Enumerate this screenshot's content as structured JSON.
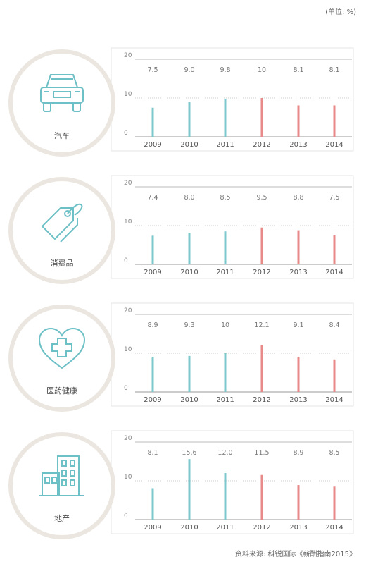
{
  "unit_note": "(单位: %)",
  "source_note": "资料来源: 科锐国际《薪酬指南2015》",
  "colors": {
    "early": "#7cc8cc",
    "late": "#e88a8a",
    "ring": "#ebe6df",
    "icon": "#6cc0c6"
  },
  "chart_data": [
    {
      "type": "bar",
      "label": "汽车",
      "icon": "car-icon",
      "categories": [
        "2009",
        "2010",
        "2011",
        "2012",
        "2013",
        "2014"
      ],
      "values": [
        7.5,
        9.0,
        9.8,
        10,
        8.1,
        8.1
      ],
      "value_labels": [
        "7.5",
        "9.0",
        "9.8",
        "10",
        "8.1",
        "8.1"
      ],
      "y_ticks": [
        "20",
        "10",
        "0"
      ],
      "ylim": [
        0,
        20
      ]
    },
    {
      "type": "bar",
      "label": "消费品",
      "icon": "price-tag-icon",
      "categories": [
        "2009",
        "2010",
        "2011",
        "2012",
        "2013",
        "2014"
      ],
      "values": [
        7.4,
        8.0,
        8.5,
        9.5,
        8.8,
        7.5
      ],
      "value_labels": [
        "7.4",
        "8.0",
        "8.5",
        "9.5",
        "8.8",
        "7.5"
      ],
      "y_ticks": [
        "20",
        "10",
        "0"
      ],
      "ylim": [
        0,
        20
      ]
    },
    {
      "type": "bar",
      "label": "医药健康",
      "icon": "heart-cross-icon",
      "categories": [
        "2009",
        "2010",
        "2011",
        "2012",
        "2013",
        "2014"
      ],
      "values": [
        8.9,
        9.3,
        10,
        12.1,
        9.1,
        8.4
      ],
      "value_labels": [
        "8.9",
        "9.3",
        "10",
        "12.1",
        "9.1",
        "8.4"
      ],
      "y_ticks": [
        "20",
        "10",
        "0"
      ],
      "ylim": [
        0,
        20
      ]
    },
    {
      "type": "bar",
      "label": "地产",
      "icon": "building-icon",
      "categories": [
        "2009",
        "2010",
        "2011",
        "2012",
        "2013",
        "2014"
      ],
      "values": [
        8.1,
        15.6,
        12.0,
        11.5,
        8.9,
        8.5
      ],
      "value_labels": [
        "8.1",
        "15.6",
        "12.0",
        "11.5",
        "8.9",
        "8.5"
      ],
      "y_ticks": [
        "20",
        "10",
        "0"
      ],
      "ylim": [
        0,
        20
      ]
    }
  ]
}
